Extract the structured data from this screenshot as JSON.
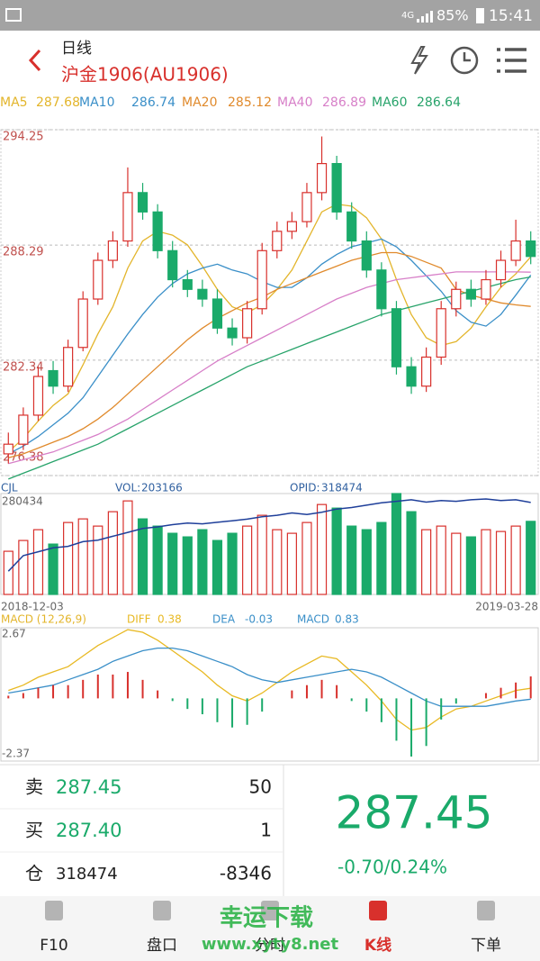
{
  "status_bar": {
    "network": "4G",
    "battery": "85%",
    "time": "15:41"
  },
  "header": {
    "subtitle": "日线",
    "title": "沪金1906(AU1906)"
  },
  "chart_data": [
    {
      "type": "candlestick",
      "up_color": "#d8302c",
      "down_color": "#1aaa6a",
      "ylim": [
        276.38,
        294.25
      ],
      "yticks": [
        294.25,
        288.29,
        282.34,
        276.38
      ],
      "grid": true,
      "open": [
        277.5,
        278.0,
        279.5,
        281.8,
        281.0,
        283.0,
        285.5,
        287.5,
        288.5,
        291.0,
        290.0,
        288.0,
        286.5,
        286.0,
        285.5,
        284.0,
        283.5,
        285.0,
        288.0,
        289.0,
        289.5,
        291.0,
        292.5,
        290.0,
        288.5,
        287.0,
        285.0,
        282.0,
        281.0,
        282.5,
        285.0,
        286.0,
        285.5,
        286.5,
        287.5,
        288.5
      ],
      "high": [
        278.6,
        279.9,
        282.0,
        282.3,
        283.4,
        285.9,
        287.9,
        289.0,
        292.3,
        291.5,
        290.4,
        288.5,
        287.0,
        286.5,
        286.0,
        284.5,
        285.4,
        288.4,
        289.5,
        290.0,
        291.5,
        293.9,
        292.9,
        290.5,
        289.0,
        287.4,
        285.4,
        282.5,
        283.0,
        285.4,
        286.4,
        286.5,
        287.0,
        288.0,
        289.6,
        289.0
      ],
      "low": [
        277.0,
        277.7,
        279.2,
        280.6,
        280.7,
        282.8,
        285.2,
        287.1,
        288.2,
        289.6,
        287.6,
        286.1,
        285.6,
        285.1,
        283.7,
        283.1,
        283.2,
        284.7,
        287.6,
        288.6,
        289.2,
        290.6,
        289.6,
        288.1,
        286.6,
        284.6,
        281.6,
        280.6,
        280.7,
        282.1,
        284.6,
        285.1,
        285.2,
        286.1,
        287.2,
        287.3
      ],
      "close": [
        278.0,
        279.5,
        281.5,
        281.0,
        283.0,
        285.5,
        287.5,
        288.5,
        291.0,
        290.0,
        288.0,
        286.5,
        286.0,
        285.5,
        284.0,
        283.5,
        285.0,
        288.0,
        289.0,
        289.5,
        291.0,
        292.5,
        290.0,
        288.5,
        287.0,
        285.0,
        282.0,
        281.0,
        282.5,
        285.0,
        286.0,
        285.5,
        286.5,
        287.5,
        288.5,
        287.7
      ],
      "series": [
        {
          "name": "MA5",
          "color": "#e3b52b",
          "values": [
            277.6,
            278.3,
            279.2,
            280.0,
            280.6,
            282.1,
            283.7,
            285.1,
            287.1,
            288.5,
            289.0,
            288.8,
            288.3,
            287.2,
            286.0,
            285.1,
            284.8,
            285.2,
            286.0,
            287.0,
            288.5,
            290.0,
            290.4,
            290.3,
            289.7,
            288.6,
            286.5,
            284.7,
            283.5,
            283.1,
            283.3,
            284.0,
            285.1,
            286.1,
            286.8,
            287.68
          ]
        },
        {
          "name": "MA10",
          "color": "#3a8fc8",
          "values": [
            277.5,
            277.9,
            278.4,
            279.0,
            279.6,
            280.4,
            281.5,
            282.6,
            283.7,
            284.7,
            285.6,
            286.3,
            286.8,
            287.1,
            287.3,
            287.0,
            286.8,
            286.4,
            286.1,
            286.1,
            286.6,
            287.3,
            287.8,
            288.2,
            288.4,
            288.6,
            288.2,
            287.5,
            286.7,
            285.9,
            284.9,
            284.3,
            284.1,
            284.7,
            285.7,
            286.74
          ]
        },
        {
          "name": "MA20",
          "color": "#e08a2c",
          "values": [
            277.3,
            277.5,
            277.8,
            278.1,
            278.4,
            278.8,
            279.3,
            279.9,
            280.6,
            281.3,
            282.0,
            282.7,
            283.4,
            284.0,
            284.5,
            284.9,
            285.3,
            285.6,
            286.0,
            286.3,
            286.6,
            286.9,
            287.2,
            287.5,
            287.7,
            287.9,
            287.9,
            287.7,
            287.4,
            287.1,
            286.0,
            285.7,
            285.5,
            285.3,
            285.2,
            285.12
          ]
        },
        {
          "name": "MA40",
          "color": "#d77fc8",
          "values": [
            277.0,
            277.2,
            277.4,
            277.6,
            277.9,
            278.2,
            278.5,
            278.9,
            279.3,
            279.8,
            280.3,
            280.8,
            281.3,
            281.8,
            282.3,
            282.7,
            283.1,
            283.5,
            283.9,
            284.3,
            284.7,
            285.1,
            285.5,
            285.8,
            286.1,
            286.3,
            286.5,
            286.6,
            286.7,
            286.8,
            286.9,
            286.9,
            286.9,
            286.9,
            286.9,
            286.89
          ]
        },
        {
          "name": "MA60",
          "color": "#27a36a",
          "values": [
            276.2,
            276.5,
            276.8,
            277.1,
            277.4,
            277.7,
            278.0,
            278.4,
            278.8,
            279.2,
            279.6,
            280.0,
            280.4,
            280.8,
            281.2,
            281.6,
            282.0,
            282.3,
            282.6,
            282.9,
            283.2,
            283.5,
            283.8,
            284.1,
            284.4,
            284.7,
            284.9,
            285.1,
            285.3,
            285.5,
            285.7,
            285.9,
            286.1,
            286.3,
            286.5,
            286.64
          ]
        }
      ]
    },
    {
      "type": "volume",
      "title": "CJL",
      "ylim": [
        0,
        280434
      ],
      "yticks": [
        280434
      ],
      "y2lim": [
        200000,
        330000
      ],
      "x_labels": [
        "2018-12-03",
        "2019-03-28"
      ],
      "series": [
        {
          "name": "VOL:",
          "color": "#3060a0",
          "values": [
            120000,
            150000,
            180000,
            140000,
            200000,
            210000,
            190000,
            230000,
            260000,
            210000,
            190000,
            170000,
            160000,
            180000,
            150000,
            170000,
            190000,
            220000,
            180000,
            170000,
            200000,
            250000,
            240000,
            190000,
            180000,
            200000,
            280434,
            230000,
            180000,
            190000,
            170000,
            160000,
            180000,
            175000,
            190000,
            203166
          ]
        },
        {
          "name": "OPID:",
          "color": "#1f3f9a",
          "axis": "y2",
          "values": [
            230000,
            250000,
            255000,
            260000,
            262000,
            268000,
            270000,
            275000,
            280000,
            285000,
            287000,
            290000,
            292000,
            291000,
            293000,
            295000,
            297000,
            300000,
            302000,
            305000,
            303000,
            306000,
            310000,
            312000,
            315000,
            318000,
            320000,
            322000,
            319000,
            321000,
            320000,
            322000,
            323000,
            321000,
            322000,
            318474
          ]
        }
      ]
    },
    {
      "type": "macd",
      "title": "MACD (12,26,9)",
      "title_color": "#e3b52b",
      "ylim": [
        -2.37,
        2.67
      ],
      "yticks": [
        2.67,
        -2.37
      ],
      "series": [
        {
          "name": "DIFF",
          "color": "#e8b923",
          "values": [
            0.3,
            0.5,
            0.8,
            1.0,
            1.2,
            1.6,
            2.0,
            2.3,
            2.6,
            2.5,
            2.2,
            1.8,
            1.4,
            1.0,
            0.5,
            0.1,
            -0.1,
            0.2,
            0.6,
            1.0,
            1.3,
            1.6,
            1.5,
            1.0,
            0.5,
            -0.1,
            -0.8,
            -1.2,
            -1.1,
            -0.7,
            -0.4,
            -0.3,
            -0.1,
            0.1,
            0.3,
            0.38
          ]
        },
        {
          "name": "DEA",
          "color": "#3a8fc8",
          "values": [
            0.2,
            0.3,
            0.4,
            0.5,
            0.7,
            0.9,
            1.1,
            1.4,
            1.6,
            1.8,
            1.9,
            1.9,
            1.8,
            1.6,
            1.4,
            1.2,
            0.9,
            0.7,
            0.6,
            0.7,
            0.8,
            0.9,
            1.0,
            1.1,
            1.0,
            0.8,
            0.5,
            0.2,
            -0.1,
            -0.3,
            -0.3,
            -0.3,
            -0.3,
            -0.2,
            -0.1,
            -0.03
          ]
        },
        {
          "name": "MACD",
          "color": "#3a8fc8",
          "values": [
            0.1,
            0.2,
            0.4,
            0.5,
            0.5,
            0.7,
            0.9,
            0.9,
            1.0,
            0.7,
            0.3,
            -0.1,
            -0.4,
            -0.6,
            -0.9,
            -1.1,
            -1.0,
            -0.5,
            0.0,
            0.3,
            0.5,
            0.7,
            0.5,
            -0.1,
            -0.5,
            -0.9,
            -1.6,
            -2.2,
            -1.8,
            -0.8,
            -0.2,
            0.0,
            0.2,
            0.4,
            0.6,
            0.83
          ]
        }
      ]
    }
  ],
  "quote": {
    "rows": [
      {
        "label": "卖",
        "price": "287.45",
        "qty": "50"
      },
      {
        "label": "买",
        "price": "287.40",
        "qty": "1"
      },
      {
        "label": "仓",
        "price": "318474",
        "qty": "-8346"
      }
    ],
    "last": "287.45",
    "change": "-0.70/0.24%"
  },
  "nav": {
    "items": [
      "F10",
      "盘口",
      "分时",
      "K线",
      "下单"
    ],
    "selected": 3
  },
  "watermark": {
    "title": "幸运下载",
    "url": "www.xyty8.net"
  }
}
